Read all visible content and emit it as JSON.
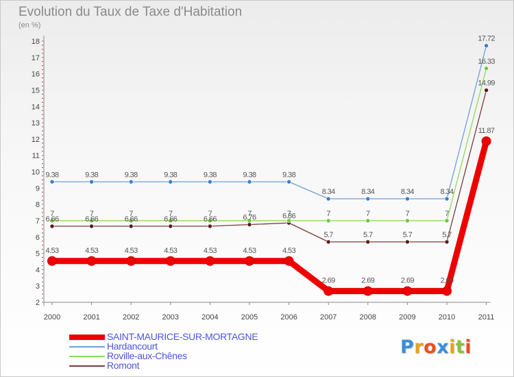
{
  "title": "Evolution du Taux de Taxe d'Habitation",
  "subtitle": "(en %)",
  "brand": {
    "logo_text": "Proxiti"
  },
  "chart_data": {
    "type": "line",
    "title": "Evolution du Taux de Taxe d'Habitation",
    "ylabel": "(en %)",
    "xlabel": "",
    "categories": [
      "2000",
      "2001",
      "2002",
      "2003",
      "2004",
      "2005",
      "2006",
      "2007",
      "2008",
      "2009",
      "2010",
      "2011"
    ],
    "yticks": [
      2,
      3,
      4,
      5,
      6,
      7,
      8,
      9,
      10,
      11,
      12,
      13,
      14,
      15,
      16,
      17,
      18
    ],
    "ylim": [
      2,
      18
    ],
    "grid": false,
    "legend_position": "bottom-left",
    "series": [
      {
        "name": "SAINT-MAURICE-SUR-MORTAGNE",
        "color": "#ee0000",
        "values": [
          4.53,
          4.53,
          4.53,
          4.53,
          4.53,
          4.53,
          4.53,
          2.69,
          2.69,
          2.69,
          2.69,
          11.87
        ],
        "labels": [
          "4.53",
          "4.53",
          "4.53",
          "4.53",
          "4.53",
          "4.53",
          "4.53",
          "2.69",
          "2.69",
          "2.69",
          "2.69",
          "11.87"
        ]
      },
      {
        "name": "Hardancourt",
        "color": "#6f9fd8",
        "marker_color": "#3a7fc8",
        "values": [
          9.38,
          9.38,
          9.38,
          9.38,
          9.38,
          9.38,
          9.38,
          8.34,
          8.34,
          8.34,
          8.34,
          17.72
        ],
        "labels": [
          "9.38",
          "9.38",
          "9.38",
          "9.38",
          "9.38",
          "9.38",
          "9.38",
          "8.34",
          "8.34",
          "8.34",
          "8.34",
          "17.72"
        ]
      },
      {
        "name": "Roville-aux-Chênes",
        "color": "#8fd860",
        "marker_color": "#6cc838",
        "values": [
          7,
          7,
          7,
          7,
          7,
          7,
          7,
          7,
          7,
          7,
          7,
          16.33
        ],
        "labels": [
          "7",
          "7",
          "7",
          "7",
          "7",
          "7",
          "7",
          "7",
          "7",
          "7",
          "7",
          "16.33"
        ]
      },
      {
        "name": "Romont",
        "color": "#7a3a3a",
        "marker_color": "#5a1818",
        "values": [
          6.66,
          6.66,
          6.66,
          6.66,
          6.66,
          6.76,
          6.86,
          5.7,
          5.7,
          5.7,
          5.7,
          14.99
        ],
        "labels": [
          "6.66",
          "6.66",
          "6.66",
          "6.66",
          "6.66",
          "6.76",
          "6.86",
          "5.7",
          "5.7",
          "5.7",
          "5.7",
          "14.99"
        ]
      }
    ]
  }
}
